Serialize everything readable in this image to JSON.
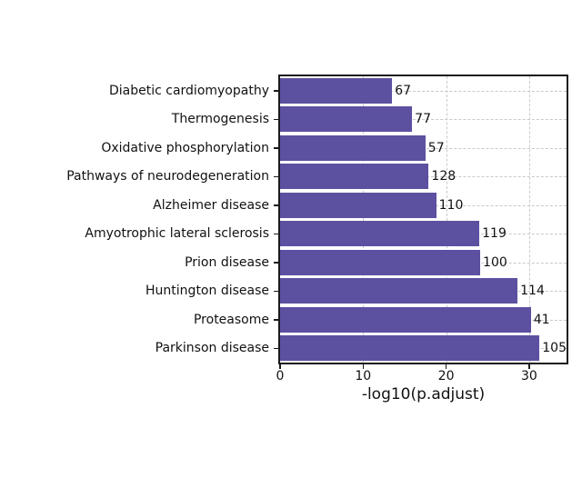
{
  "figure": {
    "background": "#ffffff"
  },
  "chart_data": {
    "type": "bar",
    "orientation": "horizontal",
    "title": "",
    "xlabel": "-log10(p.adjust)",
    "ylabel": "",
    "categories": [
      "Diabetic cardiomyopathy",
      "Thermogenesis",
      "Oxidative phosphorylation",
      "Pathways of neurodegeneration",
      "Alzheimer disease",
      "Amyotrophic lateral sclerosis",
      "Prion disease",
      "Huntington disease",
      "Proteasome",
      "Parkinson disease"
    ],
    "values": [
      13.5,
      15.9,
      17.5,
      17.9,
      18.8,
      24.0,
      24.1,
      28.6,
      30.2,
      31.3
    ],
    "bar_labels": [
      "67",
      "77",
      "57",
      "128",
      "110",
      "119",
      "100",
      "114",
      "41",
      "105"
    ],
    "xlim": [
      0,
      34.5
    ],
    "xticks": [
      0,
      10,
      20,
      30
    ],
    "bar_color": "#5c50a1",
    "gridline_color": "#c9c9c9",
    "grid_style": "dashed",
    "grid_axes": "both",
    "spine_color": "#1a1a1a",
    "legend": "none"
  }
}
